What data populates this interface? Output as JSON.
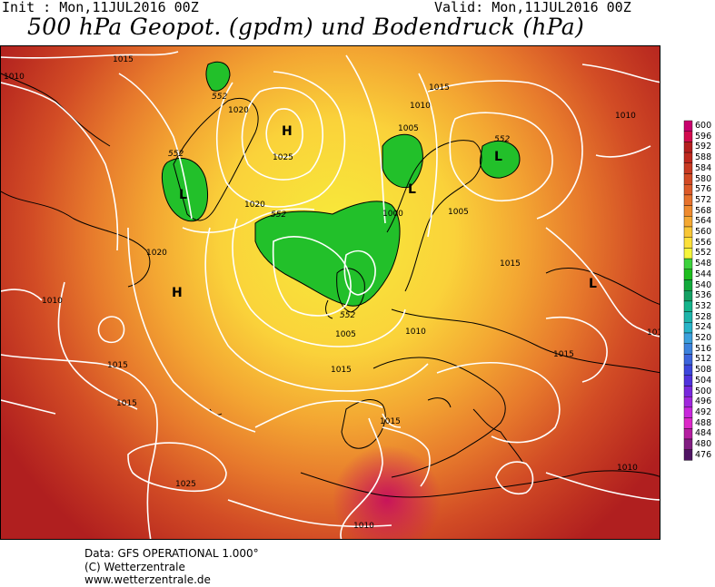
{
  "header": {
    "init": "Init : Mon,11JUL2016 00Z",
    "valid": "Valid: Mon,11JUL2016 00Z",
    "title": "500 hPa Geopot. (gpdm) und Bodendruck (hPa)"
  },
  "footer": {
    "data": "Data: GFS OPERATIONAL 1.000°",
    "copyright": "(C) Wetterzentrale",
    "url": "www.wetterzentrale.de"
  },
  "legend": [
    {
      "value": "600",
      "color": "#c8006e"
    },
    {
      "value": "596",
      "color": "#d20a4e"
    },
    {
      "value": "592",
      "color": "#b41e1e"
    },
    {
      "value": "588",
      "color": "#be281e"
    },
    {
      "value": "584",
      "color": "#c83a22"
    },
    {
      "value": "580",
      "color": "#d24a24"
    },
    {
      "value": "576",
      "color": "#dc5a28"
    },
    {
      "value": "572",
      "color": "#e6722c"
    },
    {
      "value": "568",
      "color": "#ee8a2e"
    },
    {
      "value": "564",
      "color": "#f4a832"
    },
    {
      "value": "560",
      "color": "#f8c636"
    },
    {
      "value": "556",
      "color": "#fce03a"
    },
    {
      "value": "552",
      "color": "#f5f53c"
    },
    {
      "value": "548",
      "color": "#3cd23c"
    },
    {
      "value": "544",
      "color": "#1ebe1e"
    },
    {
      "value": "540",
      "color": "#12aa3c"
    },
    {
      "value": "536",
      "color": "#14a064"
    },
    {
      "value": "532",
      "color": "#14b48c"
    },
    {
      "value": "528",
      "color": "#1eb4aa"
    },
    {
      "value": "524",
      "color": "#28b4c8"
    },
    {
      "value": "520",
      "color": "#3ca0dc"
    },
    {
      "value": "516",
      "color": "#3c82dc"
    },
    {
      "value": "512",
      "color": "#3c64dc"
    },
    {
      "value": "508",
      "color": "#3c46dc"
    },
    {
      "value": "504",
      "color": "#5032dc"
    },
    {
      "value": "500",
      "color": "#7828dc"
    },
    {
      "value": "496",
      "color": "#a028dc"
    },
    {
      "value": "492",
      "color": "#c828dc"
    },
    {
      "value": "488",
      "color": "#dc28c8"
    },
    {
      "value": "484",
      "color": "#b41ea0"
    },
    {
      "value": "480",
      "color": "#821e82"
    },
    {
      "value": "476",
      "color": "#501464"
    }
  ],
  "map": {
    "pressure_labels": [
      "1015",
      "1010",
      "1020",
      "1025",
      "1015",
      "1010",
      "1005",
      "1000",
      "1005",
      "1015",
      "1020",
      "1010",
      "1015",
      "1010",
      "1015",
      "1020",
      "1005",
      "1010",
      "1015",
      "1015",
      "1015",
      "1025",
      "1010",
      "1010",
      "1010"
    ],
    "geopotential_labels": [
      "552",
      "552",
      "552",
      "552",
      "552"
    ],
    "centers": [
      {
        "type": "H"
      },
      {
        "type": "H"
      },
      {
        "type": "L"
      },
      {
        "type": "L"
      },
      {
        "type": "L"
      },
      {
        "type": "L"
      }
    ]
  }
}
